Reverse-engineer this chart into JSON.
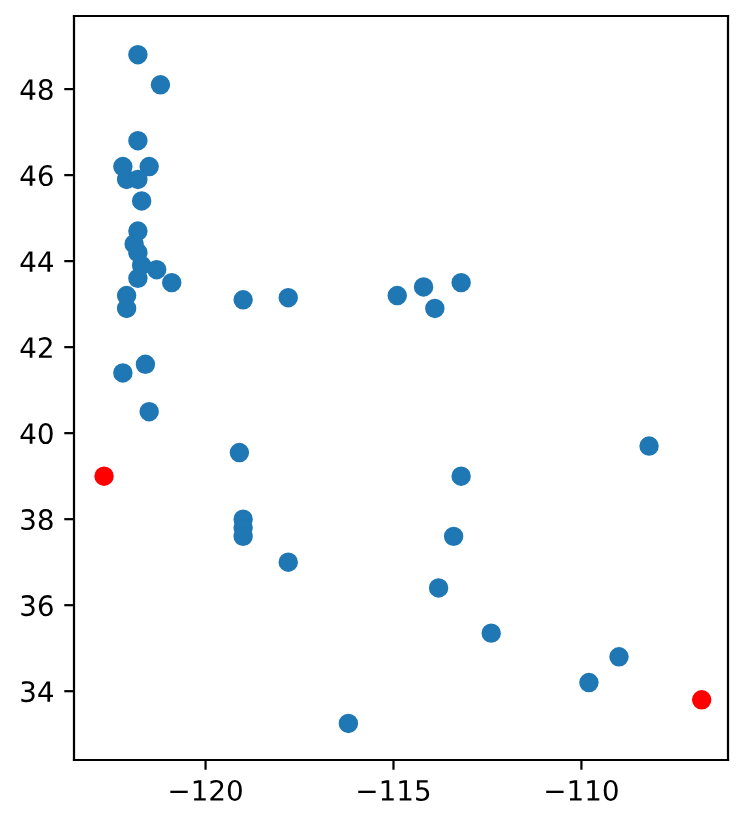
{
  "chart_data": {
    "type": "scatter",
    "xlim": [
      -123.5,
      -106.1
    ],
    "ylim": [
      32.4,
      49.7
    ],
    "xticks": [
      {
        "value": -120,
        "label": "−120"
      },
      {
        "value": -115,
        "label": "−115"
      },
      {
        "value": -110,
        "label": "−110"
      }
    ],
    "yticks": [
      34,
      36,
      38,
      40,
      42,
      44,
      46,
      48
    ],
    "grid": false,
    "marker": "circle",
    "series": [
      {
        "color": "#1f77b4",
        "x": [
          -121.8,
          -121.2,
          -121.8,
          -122.2,
          -121.5,
          -122.1,
          -121.8,
          -121.7,
          -121.8,
          -121.9,
          -121.8,
          -121.7,
          -121.8,
          -121.3,
          -120.9,
          -122.1,
          -122.1,
          -121.6,
          -122.2,
          -121.5,
          -119.1,
          -119.0,
          -119.0,
          -119.0,
          -117.8,
          -116.2,
          -119.0,
          -117.8,
          -114.9,
          -114.2,
          -113.9,
          -113.2,
          -108.2,
          -113.2,
          -113.4,
          -113.8,
          -112.4,
          -109.8,
          -109.0
        ],
        "values": [
          48.8,
          48.1,
          46.8,
          46.2,
          46.2,
          45.9,
          45.9,
          45.4,
          44.7,
          44.4,
          44.2,
          43.9,
          43.6,
          43.8,
          43.5,
          43.2,
          42.9,
          41.6,
          41.4,
          40.5,
          39.55,
          38.0,
          37.8,
          37.6,
          37.0,
          33.25,
          43.1,
          43.15,
          43.2,
          43.4,
          42.9,
          43.5,
          39.7,
          39.0,
          37.6,
          36.4,
          35.35,
          34.2,
          34.8
        ]
      },
      {
        "color": "#ff0000",
        "x": [
          -122.7,
          -106.8
        ],
        "values": [
          39.0,
          33.8
        ]
      }
    ]
  }
}
